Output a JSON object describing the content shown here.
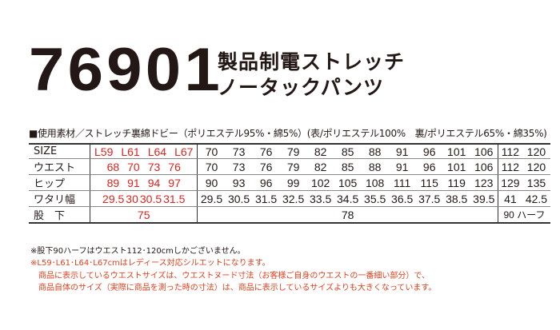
{
  "product": {
    "number": "76901",
    "name_line1": "製品制電ストレッチ",
    "name_line2": "ノータックパンツ"
  },
  "material": "■使用素材／ストレッチ裏綿ドビー（ポリエステル95%・綿5%）(表/ポリエステル100%　裏/ポリエステル65%・綿35%)",
  "table": {
    "rows": [
      {
        "label": "SIZE",
        "ladies": [
          "L59",
          "L61",
          "L64",
          "L67"
        ],
        "mens": [
          "70",
          "73",
          "76",
          "79",
          "82",
          "85",
          "88",
          "91",
          "96",
          "101",
          "106"
        ],
        "big": [
          "112",
          "120"
        ]
      },
      {
        "label": "ウエスト",
        "ladies": [
          "68",
          "70",
          "73",
          "76"
        ],
        "mens": [
          "70",
          "73",
          "76",
          "79",
          "82",
          "85",
          "88",
          "91",
          "96",
          "101",
          "106"
        ],
        "big": [
          "112",
          "120"
        ]
      },
      {
        "label": "ヒップ",
        "ladies": [
          "89",
          "91",
          "94",
          "97"
        ],
        "mens": [
          "90",
          "93",
          "96",
          "99",
          "102",
          "105",
          "108",
          "111",
          "115",
          "119",
          "123"
        ],
        "big": [
          "129",
          "135"
        ]
      },
      {
        "label": "ワタリ幅",
        "ladies": [
          "29.5",
          "30",
          "30.5",
          "31.5"
        ],
        "mens": [
          "29.5",
          "30.5",
          "31.5",
          "32.5",
          "33.5",
          "34.5",
          "35.5",
          "36.5",
          "37.5",
          "38.5",
          "39.5"
        ],
        "big": [
          "41",
          "42.5"
        ]
      }
    ],
    "inseam": {
      "label": "股　下",
      "ladies": "75",
      "mens": "78",
      "big": "90 ハーフ"
    }
  },
  "notes": [
    "※股下90ハーフはウエスト112･120cmしかございません。",
    "※L59･L61･L64･L67cmはレディース対応シルエットになります。",
    "　商品に表示しているウエストサイズは、ウエストヌード寸法（お客様ご自身のウエストの一番細い部分）で、",
    "　商品自体のサイズ（実際に商品を測った時の寸法）は、商品に表示しているサイズよりも大きくなっています。"
  ],
  "colors": {
    "ladies": "#d7251f",
    "notes_red": "#e0401f",
    "text": "#231815"
  }
}
